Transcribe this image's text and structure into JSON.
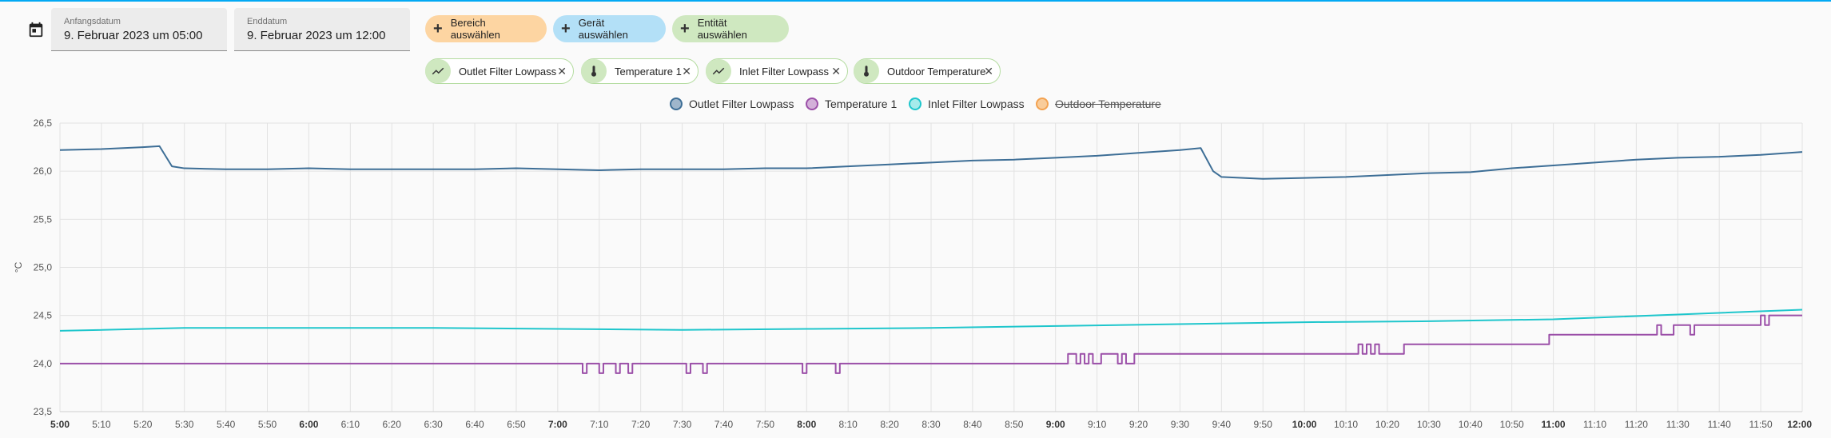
{
  "date_range": {
    "start_label": "Anfangsdatum",
    "start_value": "9. Februar 2023 um 05:00",
    "end_label": "Enddatum",
    "end_value": "9. Februar 2023 um 12:00"
  },
  "target_buttons": {
    "area": "Bereich auswählen",
    "device": "Gerät auswählen",
    "entity": "Entität auswählen"
  },
  "selected_entities": [
    {
      "label": "Outlet Filter Lowpass",
      "icon": "chart-line-icon"
    },
    {
      "label": "Temperature 1",
      "icon": "thermometer-icon"
    },
    {
      "label": "Inlet Filter Lowpass",
      "icon": "chart-line-icon"
    },
    {
      "label": "Outdoor Temperature",
      "icon": "thermometer-icon"
    }
  ],
  "legend": [
    {
      "label": "Outlet Filter Lowpass",
      "color": "#3d6e96",
      "hidden": false
    },
    {
      "label": "Temperature 1",
      "color": "#9b4fa8",
      "hidden": false
    },
    {
      "label": "Inlet Filter Lowpass",
      "color": "#1fc6cc",
      "hidden": false
    },
    {
      "label": "Outdoor Temperature",
      "color": "#f3a250",
      "hidden": true
    }
  ],
  "chart_data": {
    "type": "line",
    "ylabel": "°C",
    "ylim": [
      23.5,
      26.5
    ],
    "yticks": [
      "26,5",
      "26,0",
      "25,5",
      "25,0",
      "24,5",
      "24,0",
      "23,5"
    ],
    "xlim": [
      "05:00",
      "12:00"
    ],
    "xticks": [
      "5:00",
      "5:10",
      "5:20",
      "5:30",
      "5:40",
      "5:50",
      "6:00",
      "6:10",
      "6:20",
      "6:30",
      "6:40",
      "6:50",
      "7:00",
      "7:10",
      "7:20",
      "7:30",
      "7:40",
      "7:50",
      "8:00",
      "8:10",
      "8:20",
      "8:30",
      "8:40",
      "8:50",
      "9:00",
      "9:10",
      "9:20",
      "9:30",
      "9:40",
      "9:50",
      "10:00",
      "10:10",
      "10:20",
      "10:30",
      "10:40",
      "10:50",
      "11:00",
      "11:10",
      "11:20",
      "11:30",
      "11:40",
      "11:50",
      "12:00"
    ],
    "grid": true,
    "series": [
      {
        "name": "Outlet Filter Lowpass",
        "color": "#3d6e96",
        "points": [
          [
            "05:00",
            26.22
          ],
          [
            "05:10",
            26.23
          ],
          [
            "05:20",
            26.25
          ],
          [
            "05:24",
            26.26
          ],
          [
            "05:27",
            26.05
          ],
          [
            "05:30",
            26.03
          ],
          [
            "05:40",
            26.02
          ],
          [
            "05:50",
            26.02
          ],
          [
            "06:00",
            26.03
          ],
          [
            "06:10",
            26.02
          ],
          [
            "06:20",
            26.02
          ],
          [
            "06:30",
            26.02
          ],
          [
            "06:40",
            26.02
          ],
          [
            "06:50",
            26.03
          ],
          [
            "07:00",
            26.02
          ],
          [
            "07:10",
            26.01
          ],
          [
            "07:20",
            26.02
          ],
          [
            "07:30",
            26.02
          ],
          [
            "07:40",
            26.02
          ],
          [
            "07:50",
            26.03
          ],
          [
            "08:00",
            26.03
          ],
          [
            "08:10",
            26.05
          ],
          [
            "08:20",
            26.07
          ],
          [
            "08:30",
            26.09
          ],
          [
            "08:40",
            26.11
          ],
          [
            "08:50",
            26.12
          ],
          [
            "09:00",
            26.14
          ],
          [
            "09:10",
            26.16
          ],
          [
            "09:20",
            26.19
          ],
          [
            "09:30",
            26.22
          ],
          [
            "09:35",
            26.24
          ],
          [
            "09:38",
            26.0
          ],
          [
            "09:40",
            25.94
          ],
          [
            "09:50",
            25.92
          ],
          [
            "10:00",
            25.93
          ],
          [
            "10:10",
            25.94
          ],
          [
            "10:20",
            25.96
          ],
          [
            "10:30",
            25.98
          ],
          [
            "10:40",
            25.99
          ],
          [
            "10:50",
            26.03
          ],
          [
            "11:00",
            26.06
          ],
          [
            "11:10",
            26.09
          ],
          [
            "11:20",
            26.12
          ],
          [
            "11:30",
            26.14
          ],
          [
            "11:40",
            26.15
          ],
          [
            "11:50",
            26.17
          ],
          [
            "12:00",
            26.2
          ]
        ]
      },
      {
        "name": "Temperature 1",
        "color": "#9b4fa8",
        "step": true,
        "points": [
          [
            "05:00",
            24.0
          ],
          [
            "07:06",
            23.9
          ],
          [
            "07:07",
            24.0
          ],
          [
            "07:10",
            23.9
          ],
          [
            "07:11",
            24.0
          ],
          [
            "07:14",
            23.9
          ],
          [
            "07:15",
            24.0
          ],
          [
            "07:17",
            23.9
          ],
          [
            "07:18",
            24.0
          ],
          [
            "07:31",
            23.9
          ],
          [
            "07:32",
            24.0
          ],
          [
            "07:35",
            23.9
          ],
          [
            "07:36",
            24.0
          ],
          [
            "07:59",
            23.9
          ],
          [
            "08:00",
            24.0
          ],
          [
            "08:07",
            23.9
          ],
          [
            "08:08",
            24.0
          ],
          [
            "09:03",
            24.1
          ],
          [
            "09:05",
            24.0
          ],
          [
            "09:06",
            24.1
          ],
          [
            "09:07",
            24.0
          ],
          [
            "09:08",
            24.1
          ],
          [
            "09:09",
            24.0
          ],
          [
            "09:11",
            24.1
          ],
          [
            "09:15",
            24.0
          ],
          [
            "09:16",
            24.1
          ],
          [
            "09:17",
            24.0
          ],
          [
            "09:19",
            24.1
          ],
          [
            "10:13",
            24.2
          ],
          [
            "10:14",
            24.1
          ],
          [
            "10:15",
            24.2
          ],
          [
            "10:16",
            24.1
          ],
          [
            "10:17",
            24.2
          ],
          [
            "10:18",
            24.1
          ],
          [
            "10:24",
            24.2
          ],
          [
            "10:59",
            24.3
          ],
          [
            "11:25",
            24.4
          ],
          [
            "11:26",
            24.3
          ],
          [
            "11:29",
            24.4
          ],
          [
            "11:33",
            24.3
          ],
          [
            "11:34",
            24.4
          ],
          [
            "11:50",
            24.5
          ],
          [
            "11:51",
            24.4
          ],
          [
            "11:52",
            24.5
          ],
          [
            "12:00",
            24.5
          ]
        ]
      },
      {
        "name": "Inlet Filter Lowpass",
        "color": "#1fc6cc",
        "points": [
          [
            "05:00",
            24.34
          ],
          [
            "05:30",
            24.37
          ],
          [
            "06:00",
            24.37
          ],
          [
            "06:30",
            24.37
          ],
          [
            "07:00",
            24.36
          ],
          [
            "07:30",
            24.35
          ],
          [
            "08:00",
            24.36
          ],
          [
            "08:30",
            24.37
          ],
          [
            "09:00",
            24.39
          ],
          [
            "09:30",
            24.41
          ],
          [
            "10:00",
            24.43
          ],
          [
            "10:30",
            24.44
          ],
          [
            "11:00",
            24.46
          ],
          [
            "11:30",
            24.51
          ],
          [
            "12:00",
            24.56
          ]
        ]
      },
      {
        "name": "Outdoor Temperature",
        "color": "#f3a250",
        "hidden": true,
        "points": []
      }
    ]
  }
}
